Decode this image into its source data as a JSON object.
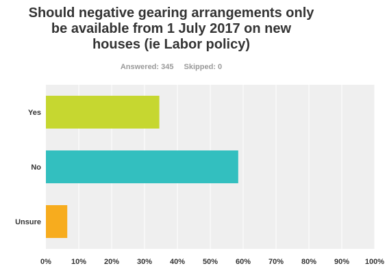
{
  "title_lines": [
    "Should negative gearing arrangements only",
    "be available from 1 July 2017 on new",
    "houses (ie Labor policy)"
  ],
  "stats": {
    "answered": "Answered: 345",
    "skipped": "Skipped: 0"
  },
  "colors": {
    "plot_bg": "#efefef",
    "grid": "#ffffff",
    "axis_text": "#333333"
  },
  "chart_data": {
    "type": "bar",
    "orientation": "horizontal",
    "title": "Should negative gearing arrangements only be available from 1 July 2017 on new houses (ie Labor policy)",
    "categories": [
      "Yes",
      "No",
      "Unsure"
    ],
    "values": [
      34.5,
      58.5,
      6.5
    ],
    "unit": "%",
    "bar_colors": [
      "#c6d730",
      "#33bfbf",
      "#f7ac1e"
    ],
    "xlim": [
      0,
      100
    ],
    "x_ticks": [
      "0%",
      "10%",
      "20%",
      "30%",
      "40%",
      "50%",
      "60%",
      "70%",
      "80%",
      "90%",
      "100%"
    ],
    "grid": true,
    "legend": false
  }
}
